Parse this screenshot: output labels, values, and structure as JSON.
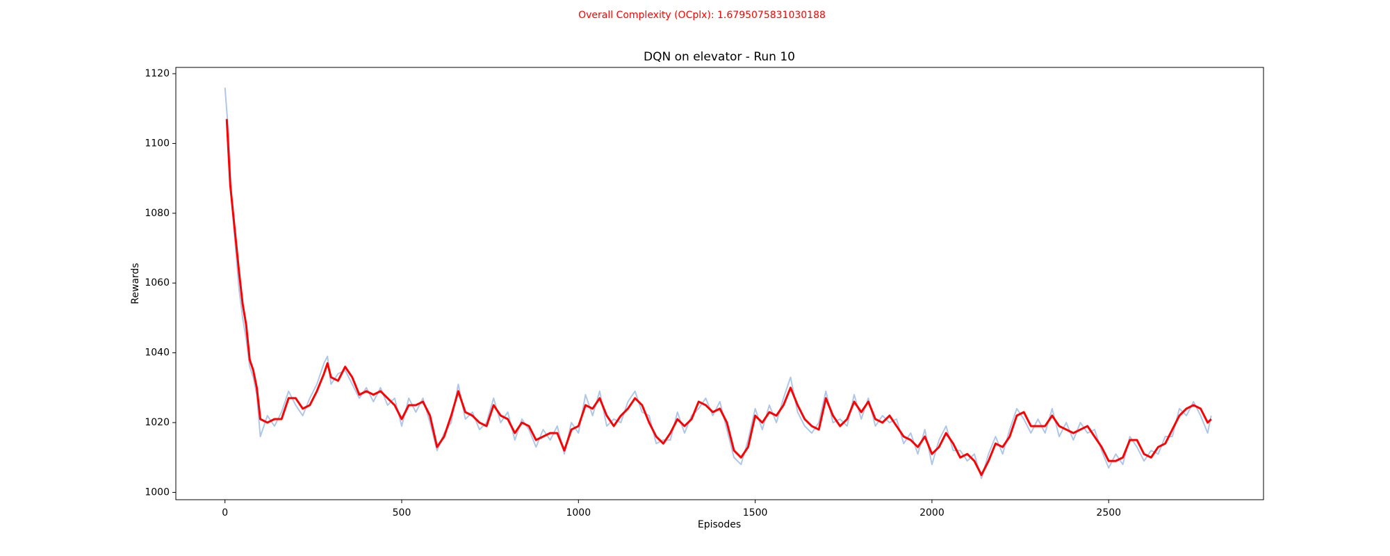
{
  "chart_data": {
    "type": "line",
    "suptitle": "Overall Complexity (OCplx): 1.6795075831030188",
    "suptitle_color": "#ff0000",
    "title": "DQN on elevator - Run 10",
    "xlabel": "Episodes",
    "ylabel": "Rewards",
    "xlim": [
      -139,
      2938
    ],
    "ylim": [
      997.9,
      1121.8
    ],
    "xticks": [
      0,
      500,
      1000,
      1500,
      2000,
      2500
    ],
    "yticks": [
      1000,
      1020,
      1040,
      1060,
      1080,
      1100,
      1120
    ],
    "grid": false,
    "series": [
      {
        "color": "#aec7e8",
        "width": 2,
        "x": [
          0,
          10,
          20,
          30,
          40,
          50,
          60,
          70,
          80,
          90,
          100,
          120,
          140,
          160,
          180,
          200,
          220,
          240,
          260,
          280,
          290,
          300,
          320,
          340,
          360,
          380,
          400,
          420,
          440,
          460,
          480,
          500,
          520,
          540,
          560,
          580,
          600,
          620,
          640,
          660,
          680,
          700,
          720,
          740,
          760,
          780,
          800,
          820,
          840,
          860,
          880,
          900,
          920,
          940,
          960,
          980,
          1000,
          1020,
          1040,
          1060,
          1080,
          1100,
          1120,
          1140,
          1160,
          1180,
          1200,
          1220,
          1240,
          1260,
          1280,
          1300,
          1320,
          1340,
          1360,
          1380,
          1400,
          1420,
          1440,
          1460,
          1480,
          1500,
          1520,
          1540,
          1560,
          1580,
          1600,
          1620,
          1640,
          1660,
          1680,
          1700,
          1720,
          1740,
          1760,
          1780,
          1800,
          1820,
          1840,
          1860,
          1880,
          1900,
          1920,
          1940,
          1960,
          1980,
          2000,
          2020,
          2040,
          2060,
          2080,
          2100,
          2120,
          2140,
          2160,
          2180,
          2200,
          2220,
          2240,
          2260,
          2280,
          2300,
          2320,
          2340,
          2360,
          2380,
          2400,
          2420,
          2440,
          2460,
          2480,
          2500,
          2520,
          2540,
          2560,
          2580,
          2600,
          2620,
          2640,
          2660,
          2680,
          2700,
          2720,
          2740,
          2760,
          2780,
          2790
        ],
        "values": [
          1116,
          1103,
          1082,
          1070,
          1058,
          1050,
          1044,
          1036,
          1033,
          1028,
          1016,
          1022,
          1019,
          1023,
          1029,
          1025,
          1022,
          1027,
          1031,
          1037,
          1039,
          1031,
          1034,
          1035,
          1031,
          1027,
          1030,
          1026,
          1030,
          1025,
          1027,
          1019,
          1027,
          1023,
          1027,
          1020,
          1012,
          1017,
          1020,
          1031,
          1021,
          1023,
          1018,
          1020,
          1027,
          1020,
          1023,
          1015,
          1021,
          1018,
          1013,
          1018,
          1015,
          1019,
          1011,
          1020,
          1017,
          1028,
          1022,
          1029,
          1019,
          1021,
          1020,
          1026,
          1029,
          1023,
          1022,
          1014,
          1015,
          1015,
          1023,
          1017,
          1022,
          1024,
          1027,
          1022,
          1026,
          1018,
          1010,
          1008,
          1015,
          1024,
          1018,
          1025,
          1020,
          1027,
          1033,
          1023,
          1019,
          1017,
          1020,
          1029,
          1020,
          1021,
          1019,
          1028,
          1021,
          1027,
          1019,
          1022,
          1020,
          1021,
          1014,
          1017,
          1011,
          1018,
          1008,
          1015,
          1019,
          1012,
          1012,
          1009,
          1011,
          1004,
          1011,
          1016,
          1011,
          1018,
          1024,
          1021,
          1017,
          1021,
          1017,
          1024,
          1016,
          1020,
          1015,
          1020,
          1017,
          1018,
          1012,
          1007,
          1011,
          1008,
          1016,
          1013,
          1009,
          1012,
          1011,
          1016,
          1016,
          1024,
          1022,
          1026,
          1022,
          1017,
          1022
        ]
      },
      {
        "color": "#ff0000",
        "width": 3,
        "x": [
          5,
          15,
          30,
          40,
          50,
          60,
          70,
          80,
          90,
          100,
          120,
          140,
          160,
          180,
          200,
          220,
          240,
          260,
          280,
          290,
          300,
          320,
          340,
          360,
          380,
          400,
          420,
          440,
          460,
          480,
          500,
          520,
          540,
          560,
          580,
          600,
          620,
          640,
          660,
          680,
          700,
          720,
          740,
          760,
          780,
          800,
          820,
          840,
          860,
          880,
          900,
          920,
          940,
          960,
          980,
          1000,
          1020,
          1040,
          1060,
          1080,
          1100,
          1120,
          1140,
          1160,
          1180,
          1200,
          1220,
          1240,
          1260,
          1280,
          1300,
          1320,
          1340,
          1360,
          1380,
          1400,
          1420,
          1440,
          1460,
          1480,
          1500,
          1520,
          1540,
          1560,
          1580,
          1600,
          1620,
          1640,
          1660,
          1680,
          1700,
          1720,
          1740,
          1760,
          1780,
          1800,
          1820,
          1840,
          1860,
          1880,
          1900,
          1920,
          1940,
          1960,
          1980,
          2000,
          2020,
          2040,
          2060,
          2080,
          2100,
          2120,
          2140,
          2160,
          2180,
          2200,
          2220,
          2240,
          2260,
          2280,
          2300,
          2320,
          2340,
          2360,
          2380,
          2400,
          2420,
          2440,
          2460,
          2480,
          2500,
          2520,
          2540,
          2560,
          2580,
          2600,
          2620,
          2640,
          2660,
          2680,
          2700,
          2720,
          2740,
          2760,
          2780,
          2790
        ],
        "values": [
          1107,
          1088,
          1073,
          1063,
          1054,
          1048,
          1038,
          1035,
          1030,
          1021,
          1020,
          1021,
          1021,
          1027,
          1027,
          1024,
          1025,
          1029,
          1034,
          1037,
          1033,
          1032,
          1036,
          1033,
          1028,
          1029,
          1028,
          1029,
          1027,
          1025,
          1021,
          1025,
          1025,
          1026,
          1022,
          1013,
          1016,
          1022,
          1029,
          1023,
          1022,
          1020,
          1019,
          1025,
          1022,
          1021,
          1017,
          1020,
          1019,
          1015,
          1016,
          1017,
          1017,
          1012,
          1018,
          1019,
          1025,
          1024,
          1027,
          1022,
          1019,
          1022,
          1024,
          1027,
          1025,
          1020,
          1016,
          1014,
          1017,
          1021,
          1019,
          1021,
          1026,
          1025,
          1023,
          1024,
          1020,
          1012,
          1010,
          1013,
          1022,
          1020,
          1023,
          1022,
          1025,
          1030,
          1025,
          1021,
          1019,
          1018,
          1027,
          1022,
          1019,
          1021,
          1026,
          1023,
          1026,
          1021,
          1020,
          1022,
          1019,
          1016,
          1015,
          1013,
          1016,
          1011,
          1013,
          1017,
          1014,
          1010,
          1011,
          1009,
          1005,
          1009,
          1014,
          1013,
          1016,
          1022,
          1023,
          1019,
          1019,
          1019,
          1022,
          1019,
          1018,
          1017,
          1018,
          1019,
          1016,
          1013,
          1009,
          1009,
          1010,
          1015,
          1015,
          1011,
          1010,
          1013,
          1014,
          1018,
          1022,
          1024,
          1025,
          1024,
          1020,
          1021
        ]
      }
    ]
  }
}
